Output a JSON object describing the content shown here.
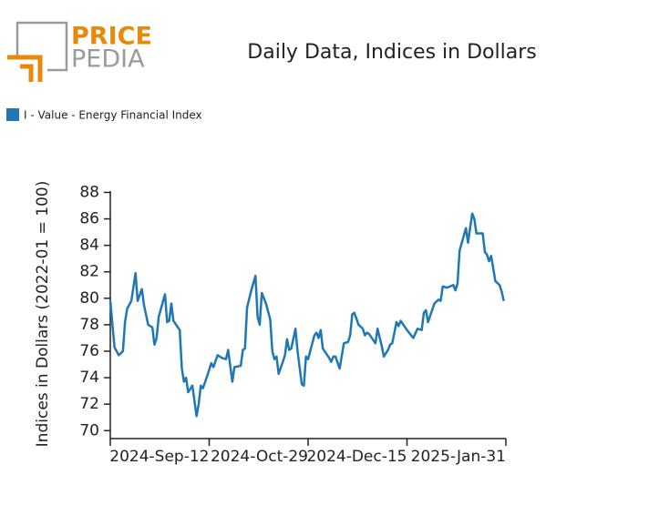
{
  "logo": {
    "word1": "PRICE",
    "word2": "PEDIA"
  },
  "chart_data": {
    "type": "line",
    "title": "Daily Data, Indices in Dollars",
    "y_label": "Indices in Dollars (2022-01 = 100)",
    "legend": "top-left",
    "grid": false,
    "xlim": [
      "2024-07-27",
      "2025-01-31"
    ],
    "xticks": [
      {
        "value": "2024-09-12",
        "label": "2024-Sep-12"
      },
      {
        "value": "2024-10-29",
        "label": "2024-Oct-29"
      },
      {
        "value": "2024-12-15",
        "label": "2024-Dec-15"
      },
      {
        "value": "2025-01-31",
        "label": "2025-Jan-31"
      }
    ],
    "ylim": [
      69.4,
      88.1
    ],
    "yticks": [
      70,
      72,
      74,
      76,
      78,
      80,
      82,
      84,
      86,
      88
    ],
    "x": [
      "2024-07-27",
      "2024-07-29",
      "2024-07-31",
      "2024-08-02",
      "2024-08-03",
      "2024-08-04",
      "2024-08-06",
      "2024-08-08",
      "2024-08-09",
      "2024-08-11",
      "2024-08-12",
      "2024-08-14",
      "2024-08-16",
      "2024-08-17",
      "2024-08-18",
      "2024-08-19",
      "2024-08-22",
      "2024-08-23",
      "2024-08-24",
      "2024-08-25",
      "2024-08-26",
      "2024-08-29",
      "2024-08-30",
      "2024-08-31",
      "2024-09-01",
      "2024-09-02",
      "2024-09-04",
      "2024-09-06",
      "2024-09-07",
      "2024-09-08",
      "2024-09-09",
      "2024-09-11",
      "2024-09-13",
      "2024-09-14",
      "2024-09-16",
      "2024-09-18",
      "2024-09-20",
      "2024-09-21",
      "2024-09-23",
      "2024-09-24",
      "2024-09-27",
      "2024-09-28",
      "2024-09-29",
      "2024-09-30",
      "2024-10-02",
      "2024-10-04",
      "2024-10-05",
      "2024-10-06",
      "2024-10-07",
      "2024-10-09",
      "2024-10-11",
      "2024-10-12",
      "2024-10-13",
      "2024-10-14",
      "2024-10-15",
      "2024-10-17",
      "2024-10-18",
      "2024-10-19",
      "2024-10-20",
      "2024-10-21",
      "2024-10-23",
      "2024-10-24",
      "2024-10-26",
      "2024-10-27",
      "2024-10-28",
      "2024-10-29",
      "2024-11-01",
      "2024-11-02",
      "2024-11-03",
      "2024-11-04",
      "2024-11-05",
      "2024-11-08",
      "2024-11-09",
      "2024-11-10",
      "2024-11-11",
      "2024-11-13",
      "2024-11-15",
      "2024-11-17",
      "2024-11-18",
      "2024-11-19",
      "2024-11-20",
      "2024-11-22",
      "2024-11-24",
      "2024-11-25",
      "2024-11-26",
      "2024-11-27",
      "2024-11-30",
      "2024-12-01",
      "2024-12-03",
      "2024-12-04",
      "2024-12-06",
      "2024-12-07",
      "2024-12-08",
      "2024-12-10",
      "2024-12-11",
      "2024-12-12",
      "2024-12-15",
      "2024-12-17",
      "2024-12-18",
      "2024-12-20",
      "2024-12-22",
      "2024-12-23",
      "2024-12-24",
      "2024-12-25",
      "2024-12-28",
      "2024-12-30",
      "2024-12-31",
      "2025-01-01",
      "2025-01-03",
      "2025-01-06",
      "2025-01-07",
      "2025-01-08",
      "2025-01-09",
      "2025-01-12",
      "2025-01-13",
      "2025-01-15",
      "2025-01-16",
      "2025-01-17",
      "2025-01-20",
      "2025-01-21",
      "2025-01-22",
      "2025-01-23",
      "2025-01-24",
      "2025-01-26",
      "2025-01-28",
      "2025-01-29",
      "2025-01-30"
    ],
    "series": [
      {
        "name": "I - Value - Energy Financial Index",
        "color": "#1f77b4",
        "values": [
          79.8,
          76.3,
          75.7,
          76.0,
          78.2,
          79.2,
          79.8,
          81.9,
          79.8,
          80.7,
          79.5,
          78.0,
          77.8,
          76.5,
          77.0,
          78.6,
          80.3,
          78.2,
          78.3,
          79.6,
          78.3,
          77.6,
          74.7,
          73.7,
          74.0,
          72.9,
          73.4,
          71.1,
          72.0,
          73.4,
          73.2,
          74.1,
          75.1,
          74.8,
          75.7,
          75.5,
          75.4,
          76.1,
          73.7,
          74.8,
          74.9,
          76.1,
          76.2,
          79.3,
          80.6,
          81.7,
          78.6,
          78.0,
          80.4,
          79.6,
          78.4,
          76.0,
          75.4,
          75.6,
          74.3,
          75.2,
          75.7,
          76.9,
          76.1,
          76.2,
          77.7,
          76.0,
          73.5,
          73.4,
          75.6,
          75.4,
          77.2,
          77.4,
          77.0,
          77.6,
          76.2,
          75.5,
          75.2,
          75.6,
          75.6,
          74.7,
          76.6,
          76.7,
          77.2,
          78.8,
          78.9,
          78.0,
          77.7,
          77.2,
          77.4,
          77.3,
          76.6,
          77.7,
          76.4,
          75.6,
          76.1,
          76.5,
          76.6,
          78.2,
          77.9,
          78.3,
          77.6,
          77.2,
          77.0,
          77.7,
          77.6,
          78.9,
          79.1,
          78.2,
          79.6,
          79.9,
          79.8,
          80.9,
          80.8,
          81.0,
          80.6,
          81.1,
          83.6,
          85.3,
          84.2,
          86.4,
          86.0,
          84.9,
          84.9,
          83.5,
          83.3,
          82.8,
          83.2,
          81.3,
          81.0,
          80.5,
          79.8
        ]
      }
    ]
  }
}
